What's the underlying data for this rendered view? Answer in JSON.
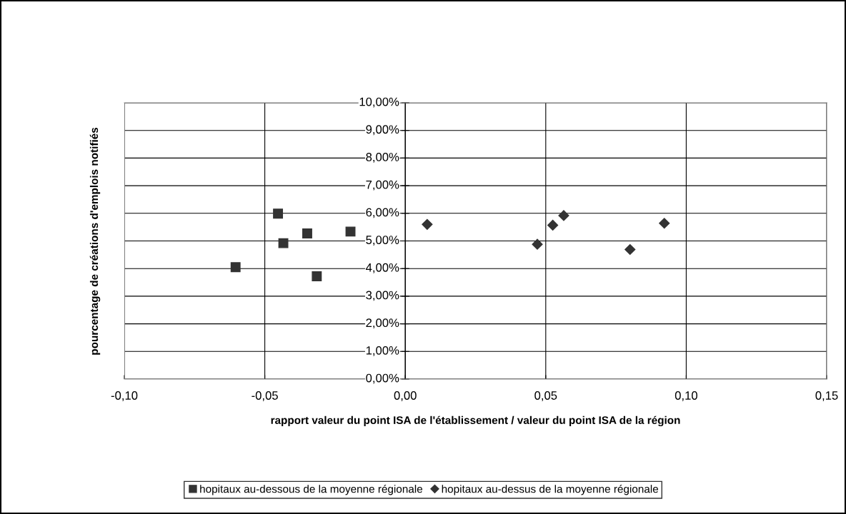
{
  "chart_data": {
    "type": "scatter",
    "xlabel": "rapport valeur du point ISA de l'établissement / valeur du point ISA de la région",
    "ylabel": "pourcentage de créations d'emplois notifiés",
    "series": [
      {
        "name": "hopitaux au-dessous de la moyenne régionale",
        "color": "#333333",
        "marker": "square",
        "x": [
          -0.0604,
          -0.0453,
          -0.0434,
          -0.0349,
          -0.0315,
          -0.0195
        ],
        "values": [
          4.05,
          5.99,
          4.92,
          5.27,
          3.72,
          5.34
        ]
      },
      {
        "name": "hopitaux au-dessus de la moyenne régionale",
        "color": "#333333",
        "marker": "diamond",
        "x": [
          0.0078,
          0.047,
          0.0525,
          0.0564,
          0.08,
          0.0922
        ],
        "values": [
          5.6,
          4.88,
          5.57,
          5.92,
          4.69,
          5.64
        ]
      }
    ],
    "xlim": [
      -0.1,
      0.15
    ],
    "xticks": [
      {
        "value": -0.1,
        "label": "-0,10"
      },
      {
        "value": -0.05,
        "label": "-0,05"
      },
      {
        "value": 0,
        "label": "0,00"
      },
      {
        "value": 0.05,
        "label": "0,05"
      },
      {
        "value": 0.1,
        "label": "0,10"
      },
      {
        "value": 0.15,
        "label": "0,15"
      }
    ],
    "ylim": [
      0,
      10
    ],
    "yticks": [
      {
        "value": 0,
        "label": "0,00%"
      },
      {
        "value": 1,
        "label": "1,00%"
      },
      {
        "value": 2,
        "label": "2,00%"
      },
      {
        "value": 3,
        "label": "3,00%"
      },
      {
        "value": 4,
        "label": "4,00%"
      },
      {
        "value": 5,
        "label": "5,00%"
      },
      {
        "value": 6,
        "label": "6,00%"
      },
      {
        "value": 7,
        "label": "7,00%"
      },
      {
        "value": 8,
        "label": "8,00%"
      },
      {
        "value": 9,
        "label": "9,00%"
      },
      {
        "value": 10,
        "label": "10,00%"
      }
    ],
    "grid": true,
    "legend": "bottom"
  }
}
